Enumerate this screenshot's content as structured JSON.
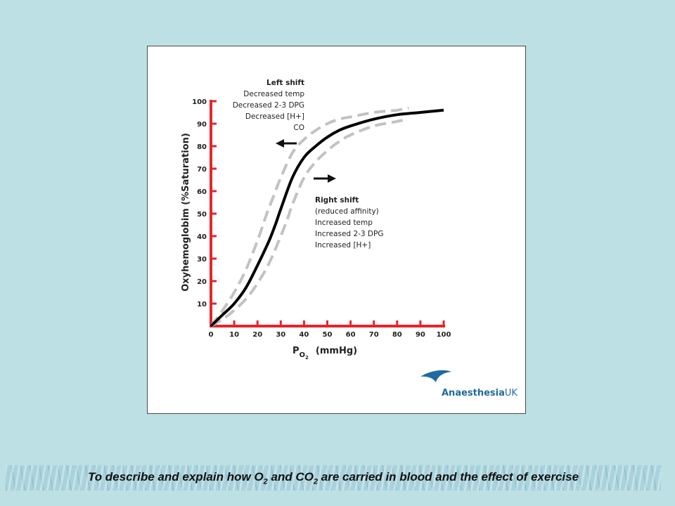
{
  "banner": {
    "part1": "To describe and explain how O",
    "sub1": "2",
    "part2": " and CO",
    "sub2": "2",
    "part3": " are carried in blood and the effect of exercise"
  },
  "logo": {
    "text_main": "Anaesthesia",
    "text_suffix": "UK"
  },
  "colors": {
    "axis": "#e3262b",
    "main_curve": "#000000",
    "shifted_curves": "#c2c2c2",
    "background": "#bde0e4"
  },
  "chart_data": {
    "type": "line",
    "title": "",
    "xlabel": {
      "main": "P",
      "sub": "O",
      "subsub": "2",
      "units": "(mmHg)"
    },
    "ylabel": "Oxyhemoglobim  (%Saturation)",
    "xlim": [
      0,
      100
    ],
    "ylim": [
      0,
      100
    ],
    "x_ticks": [
      "0",
      "10",
      "20",
      "30",
      "40",
      "50",
      "60",
      "70",
      "80",
      "90",
      "100"
    ],
    "y_ticks": [
      "10",
      "20",
      "30",
      "40",
      "50",
      "60",
      "70",
      "80",
      "90",
      "100"
    ],
    "grid": false,
    "legend": "none",
    "series": [
      {
        "style": "solid",
        "color": "#000000",
        "x": [
          0,
          5,
          10,
          15,
          20,
          25,
          28,
          30,
          35,
          40,
          45,
          50,
          55,
          60,
          70,
          80,
          90,
          100
        ],
        "y": [
          0,
          5,
          10,
          17,
          27,
          38,
          46,
          52,
          66,
          75,
          80,
          84,
          87,
          89,
          92,
          94,
          95,
          96
        ]
      },
      {
        "style": "dashed",
        "color": "#c2c2c2",
        "x": [
          0,
          5,
          10,
          15,
          20,
          24,
          27,
          30,
          35,
          40,
          45,
          50,
          55,
          60,
          70,
          80,
          85
        ],
        "y": [
          0,
          7,
          15,
          25,
          38,
          50,
          58,
          66,
          77,
          83,
          87,
          90,
          92,
          93,
          95,
          96,
          97
        ]
      },
      {
        "style": "dashed",
        "color": "#c2c2c2",
        "x": [
          0,
          5,
          10,
          15,
          20,
          25,
          30,
          33,
          35,
          40,
          45,
          50,
          55,
          60,
          70,
          80,
          84
        ],
        "y": [
          0,
          3,
          7,
          12,
          19,
          28,
          40,
          48,
          54,
          66,
          73,
          78,
          82,
          85,
          89,
          91,
          92
        ]
      }
    ],
    "annotations": {
      "left_shift": {
        "heading": "Left shift",
        "lines": [
          "Decreased temp",
          "Decreased 2-3 DPG",
          "Decreased [H+]",
          "CO"
        ],
        "direction": "left"
      },
      "right_shift": {
        "heading": "Right shift",
        "lines": [
          "(reduced affinity)",
          "Increased temp",
          "Increased 2-3 DPG",
          "Increased [H+]"
        ],
        "direction": "right"
      }
    }
  }
}
